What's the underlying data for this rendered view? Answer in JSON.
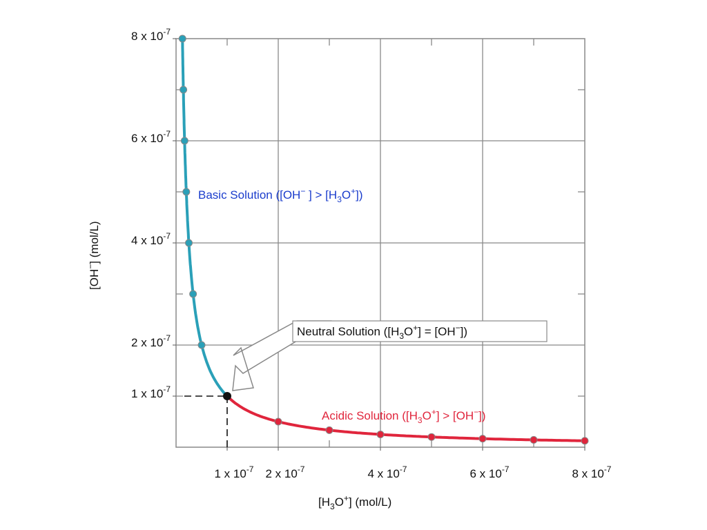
{
  "chart_data": {
    "type": "line",
    "xlabel": {
      "a": "[H",
      "sub": "3",
      "b": "O",
      "sup": "+",
      "c": "] (mol/L)"
    },
    "ylabel": {
      "a": "[OH",
      "sup": "−",
      "b": "] (mol/L)"
    },
    "xlim": [
      0,
      8e-07
    ],
    "ylim": [
      0,
      8e-07
    ],
    "grid": true,
    "x_ticks": [
      {
        "value": 1e-07,
        "mant": "1 x 10",
        "exp": "-7"
      },
      {
        "value": 2e-07,
        "mant": "2 x 10",
        "exp": "-7"
      },
      {
        "value": 4e-07,
        "mant": "4 x 10",
        "exp": "-7"
      },
      {
        "value": 6e-07,
        "mant": "6 x 10",
        "exp": "-7"
      },
      {
        "value": 8e-07,
        "mant": "8 x 10",
        "exp": "-7"
      }
    ],
    "y_ticks": [
      {
        "value": 1e-07,
        "mant": "1 x 10",
        "exp": "-7"
      },
      {
        "value": 2e-07,
        "mant": "2 x 10",
        "exp": "-7"
      },
      {
        "value": 4e-07,
        "mant": "4 x 10",
        "exp": "-7"
      },
      {
        "value": 6e-07,
        "mant": "6 x 10",
        "exp": "-7"
      },
      {
        "value": 8e-07,
        "mant": "8 x 10",
        "exp": "-7"
      }
    ],
    "series": [
      {
        "key": "basic",
        "color": "#2aa0b8",
        "points": [
          [
            1.25e-08,
            8e-07
          ],
          [
            1.43e-08,
            7e-07
          ],
          [
            1.67e-08,
            6e-07
          ],
          [
            2e-08,
            5e-07
          ],
          [
            2.5e-08,
            4e-07
          ],
          [
            3.33e-08,
            3e-07
          ],
          [
            5e-08,
            2e-07
          ],
          [
            1e-07,
            1e-07
          ]
        ]
      },
      {
        "key": "acidic",
        "color": "#e0253c",
        "points": [
          [
            1e-07,
            1e-07
          ],
          [
            2e-07,
            5e-08
          ],
          [
            3e-07,
            3.33e-08
          ],
          [
            4e-07,
            2.5e-08
          ],
          [
            5e-07,
            2e-08
          ],
          [
            6e-07,
            1.67e-08
          ],
          [
            7e-07,
            1.43e-08
          ],
          [
            8e-07,
            1.25e-08
          ]
        ]
      }
    ],
    "neutral_point": [
      1e-07,
      1e-07
    ],
    "annotations": {
      "basic": {
        "color": "#1a3ccc",
        "parts": [
          "Basic Solution ([OH",
          "−",
          " ] > [H",
          "3",
          "O",
          "+",
          "])"
        ]
      },
      "acidic": {
        "color": "#e0253c",
        "parts": [
          "Acidic Solution ([H",
          "3",
          "O",
          "+",
          "] > [OH",
          "−",
          "])"
        ]
      },
      "neutral": {
        "color": "#111111",
        "parts": [
          "Neutral Solution ([H",
          "3",
          "O",
          "+",
          "] = [OH",
          "−",
          "])"
        ]
      }
    }
  }
}
